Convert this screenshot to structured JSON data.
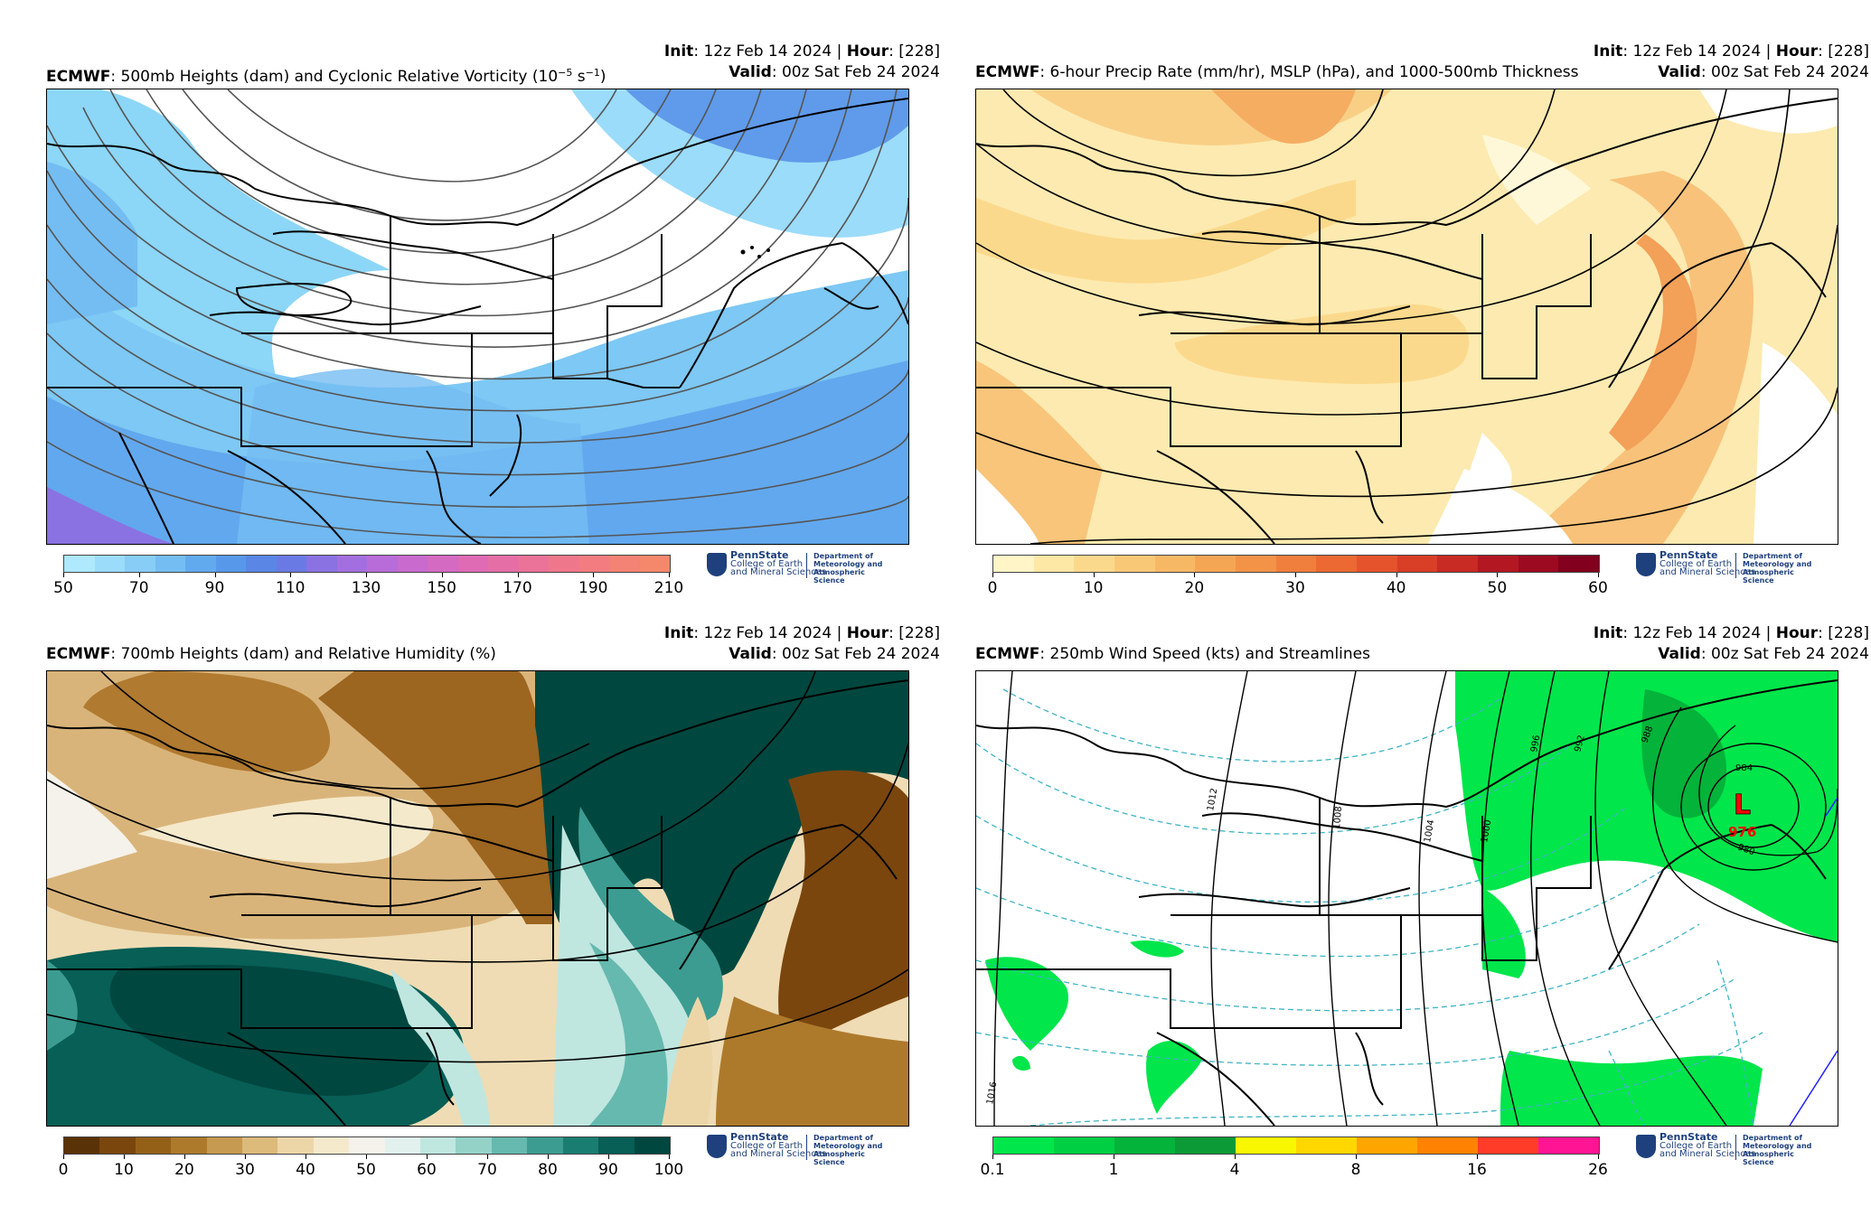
{
  "panels": [
    {
      "id": "tl",
      "init_label": "Init",
      "init_value": ": 12z Feb 14 2024 | ",
      "hour_label": "Hour",
      "hour_value": ": [228]",
      "model": "ECMWF",
      "title_pre": ": 500mb Heights (dam) and Cyclonic Relative Vorticity (10",
      "title_exp": "−5",
      "title_mid": " s",
      "title_exp2": "−1",
      "title_post": ")",
      "valid_label": "Valid",
      "valid_value": ": 00z Sat Feb 24 2024",
      "colorbar": {
        "colors": [
          "#aee9fd",
          "#9bdcfa",
          "#88cdf6",
          "#74bdf2",
          "#62aaee",
          "#5798ea",
          "#5a86e6",
          "#6a7ae4",
          "#8a72e2",
          "#a36fe0",
          "#b86cd9",
          "#c86ace",
          "#d56ac2",
          "#de6bb4",
          "#e56ea6",
          "#eb7299",
          "#ef778c",
          "#f27c80",
          "#f48275",
          "#f5886b"
        ],
        "ticks": [
          "50",
          "70",
          "90",
          "110",
          "130",
          "150",
          "170",
          "190",
          "210"
        ]
      }
    },
    {
      "id": "tr",
      "init_label": "Init",
      "init_value": ": 12z Feb 14 2024 | ",
      "hour_label": "Hour",
      "hour_value": ": [228]",
      "model": "ECMWF",
      "title": ": 6-hour Precip Rate (mm/hr), MSLP (hPa), and 1000-500mb Thickness",
      "valid_label": "Valid",
      "valid_value": ": 00z Sat Feb 24 2024",
      "colorbar": {
        "colors": [
          "#fff5c7",
          "#fde8a6",
          "#fbd98c",
          "#f9c877",
          "#f7b865",
          "#f5a655",
          "#f39348",
          "#f07e3c",
          "#ec6933",
          "#e5532c",
          "#d93e27",
          "#c82a24",
          "#b31822",
          "#9c0a21",
          "#82001e"
        ],
        "ticks": [
          "0",
          "10",
          "20",
          "30",
          "40",
          "50",
          "60"
        ]
      }
    },
    {
      "id": "bl",
      "init_label": "Init",
      "init_value": ": 12z Feb 14 2024 | ",
      "hour_label": "Hour",
      "hour_value": ": [228]",
      "model": "ECMWF",
      "title": ": 700mb Heights (dam) and Relative Humidity (%)",
      "valid_label": "Valid",
      "valid_value": ": 00z Sat Feb 24 2024",
      "colorbar": {
        "colors": [
          "#5a3208",
          "#7a460e",
          "#946018",
          "#ad7a2c",
          "#c69a50",
          "#dcba7a",
          "#ecd6a8",
          "#f5e9cc",
          "#f4f2ea",
          "#e2f1ee",
          "#c0e6e0",
          "#94d2c8",
          "#66b9ae",
          "#3c9c91",
          "#1a7d72",
          "#075f56",
          "#00473f"
        ],
        "ticks": [
          "0",
          "10",
          "20",
          "30",
          "40",
          "50",
          "60",
          "70",
          "80",
          "90",
          "100"
        ]
      }
    },
    {
      "id": "br",
      "init_label": "Init",
      "init_value": ": 12z Feb 14 2024 | ",
      "hour_label": "Hour",
      "hour_value": ": [228]",
      "model": "ECMWF",
      "title": ": 250mb Wind Speed (kts) and Streamlines",
      "valid_label": "Valid",
      "valid_value": ": 00z Sat Feb 24 2024",
      "colorbar": {
        "colors": [
          "#00e64b",
          "#00cf43",
          "#04b33a",
          "#0b9a35",
          "#f8f700",
          "#ffd700",
          "#ffa500",
          "#ff8200",
          "#ff3c28",
          "#ff1493"
        ],
        "ticks": [
          "0.1",
          "1",
          "4",
          "8",
          "16",
          "26"
        ]
      },
      "map_labels": {
        "low_letter": "L",
        "low_value": "976",
        "isobars": [
          "1016",
          "1012",
          "1008",
          "1004",
          "1000",
          "996",
          "992",
          "988",
          "984",
          "980"
        ]
      }
    }
  ],
  "logo": {
    "brand": "PennState",
    "college_line1": "College of Earth",
    "college_line2": "and Mineral Sciences",
    "dept_line1": "Department of",
    "dept_line2": "Meteorology and",
    "dept_line3": "Atmospheric Science"
  }
}
